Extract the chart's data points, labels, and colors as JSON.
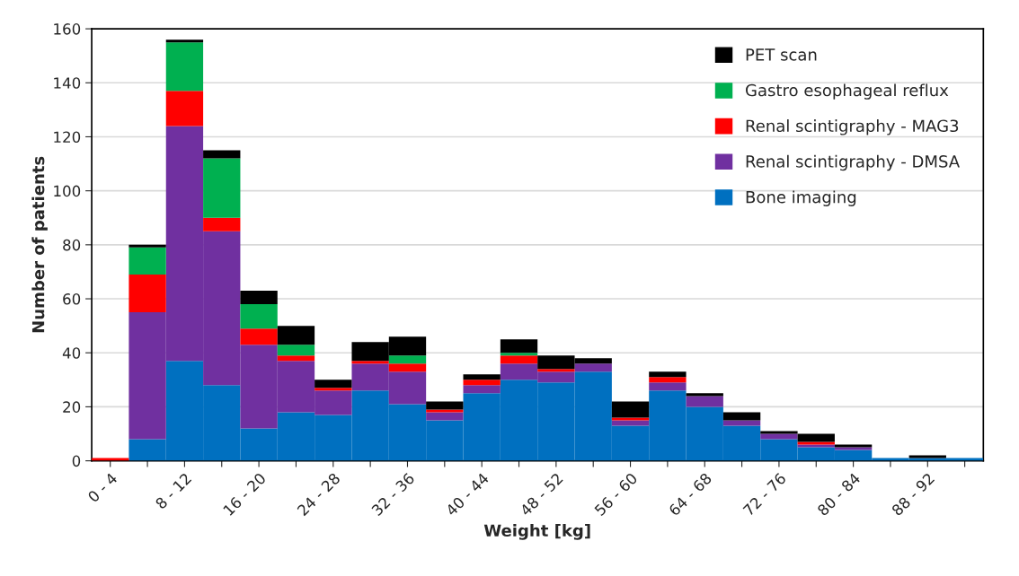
{
  "chart_data": {
    "type": "bar",
    "stacked": true,
    "xlabel": "Weight [kg]",
    "ylabel": "Number of patients",
    "categories": [
      "0 - 4",
      null,
      "8 - 12",
      null,
      "16 - 20",
      null,
      "24 - 28",
      null,
      "32 - 36",
      null,
      "40 - 44",
      null,
      "48 - 52",
      null,
      "56 - 60",
      null,
      "64 - 68",
      null,
      "72 - 76",
      null,
      "80 - 84",
      null,
      "88 - 92",
      null
    ],
    "series": [
      {
        "name": "Bone imaging",
        "color": "#0070c0",
        "values": [
          0,
          8,
          37,
          28,
          12,
          18,
          17,
          26,
          21,
          15,
          25,
          30,
          29,
          33,
          13,
          26,
          20,
          13,
          8,
          5,
          4,
          1,
          1,
          1
        ]
      },
      {
        "name": "Renal scintigraphy - DMSA",
        "color": "#7030a0",
        "values": [
          0,
          47,
          87,
          57,
          31,
          19,
          9,
          10,
          12,
          3,
          3,
          6,
          4,
          3,
          2,
          3,
          4,
          2,
          2,
          1,
          1,
          0,
          0,
          0
        ]
      },
      {
        "name": "Renal scintigraphy - MAG3",
        "color": "#ff0000",
        "values": [
          1,
          14,
          13,
          5,
          6,
          2,
          1,
          1,
          3,
          1,
          2,
          3,
          1,
          0,
          1,
          2,
          0,
          0,
          0,
          1,
          0,
          0,
          0,
          0
        ]
      },
      {
        "name": "Gastro esophageal reflux",
        "color": "#00b050",
        "values": [
          0,
          10,
          18,
          22,
          9,
          4,
          0,
          0,
          3,
          0,
          0,
          1,
          0,
          0,
          0,
          0,
          0,
          0,
          0,
          0,
          0,
          0,
          0,
          0
        ]
      },
      {
        "name": "PET scan",
        "color": "#000000",
        "values": [
          0,
          1,
          1,
          3,
          5,
          7,
          3,
          7,
          7,
          3,
          2,
          5,
          5,
          2,
          6,
          2,
          1,
          3,
          1,
          3,
          1,
          0,
          1,
          0
        ]
      }
    ],
    "ylim": [
      0,
      160
    ],
    "yticks": [
      0,
      20,
      40,
      60,
      80,
      100,
      120,
      140,
      160
    ],
    "grid": "y",
    "legend": "top right"
  }
}
